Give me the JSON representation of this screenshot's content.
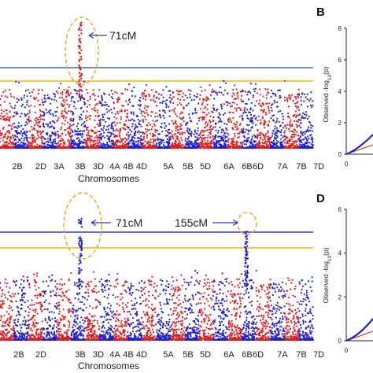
{
  "colors": {
    "odd_chromosome": "#e31a1c",
    "even_chromosome": "#1f1fd6",
    "threshold_upper": "#3a6db4",
    "threshold_lower": "#f2b316",
    "peak_circle": "#f5a623",
    "annotation_arrow": "#2b3cc8"
  },
  "chart_data": [
    {
      "type": "scatter",
      "subtype": "manhattan",
      "xlabel": "Chromosomes",
      "chromosome_tick_labels": [
        "2B",
        "2D",
        "3A",
        "3B",
        "3D",
        "4A",
        "4B",
        "4D",
        "5A",
        "5B",
        "5D",
        "6A",
        "6B",
        "6D",
        "7A",
        "7B",
        "7D"
      ],
      "annotations": [
        {
          "text": "71cM",
          "chromosome": "3B"
        }
      ],
      "peaks": [
        {
          "chromosome": "3B",
          "max_y": 0.91
        }
      ],
      "threshold_lines": [
        {
          "name": "upper",
          "y": 0.57
        },
        {
          "name": "lower",
          "y": 0.5
        }
      ],
      "ylim": [
        0,
        1
      ]
    },
    {
      "type": "scatter",
      "subtype": "qq",
      "panel_label": "B",
      "ylabel": "Observed -log10(p)",
      "y_ticks": [
        "0",
        "2",
        "4",
        "6",
        "8"
      ],
      "x_ticks": [
        "0"
      ],
      "ylim": [
        0,
        8
      ]
    },
    {
      "type": "scatter",
      "subtype": "manhattan",
      "xlabel": "Chromosomes",
      "chromosome_tick_labels": [
        "2B",
        "2D",
        "3B",
        "3D",
        "4A",
        "4B",
        "4D",
        "5A",
        "5B",
        "5D",
        "6A",
        "6B",
        "6D",
        "7A",
        "7B",
        "7D"
      ],
      "annotations": [
        {
          "text": "71cM",
          "chromosome": "3B"
        },
        {
          "text": "155cM",
          "chromosome": "6D"
        }
      ],
      "peaks": [
        {
          "chromosome": "3B",
          "max_y": 0.84
        },
        {
          "chromosome": "6D",
          "max_y": 0.75
        }
      ],
      "threshold_lines": [
        {
          "name": "upper",
          "y": 0.72
        },
        {
          "name": "lower",
          "y": 0.62
        }
      ],
      "ylim": [
        0,
        1
      ]
    },
    {
      "type": "scatter",
      "subtype": "qq",
      "panel_label": "D",
      "ylabel": "Observed -log10(p)",
      "y_ticks": [
        "0",
        "2",
        "4",
        "6"
      ],
      "x_ticks": [
        "0"
      ],
      "ylim": [
        0,
        6
      ]
    }
  ]
}
